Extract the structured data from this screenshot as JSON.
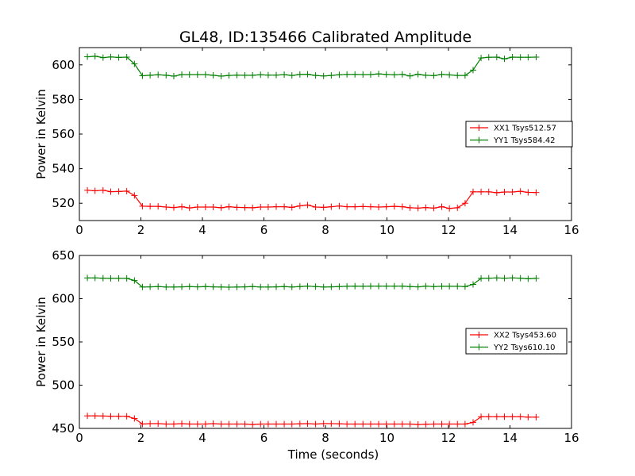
{
  "figure_title": "GL48, ID:135466 Calibrated Amplitude",
  "colors": {
    "xx": "#ff0000",
    "yy": "#008000",
    "axes": "#000000"
  },
  "chart_data": [
    {
      "type": "line",
      "title": "GL48, ID:135466 Calibrated Amplitude",
      "xlabel": "",
      "ylabel": "Power in Kelvin",
      "xlim": [
        0,
        16
      ],
      "ylim": [
        510,
        610
      ],
      "xticks": [
        0,
        2,
        4,
        6,
        8,
        10,
        12,
        14,
        16
      ],
      "yticks": [
        520,
        540,
        560,
        580,
        600
      ],
      "legend_placement": "center-right",
      "x": [
        0.26,
        0.51,
        0.77,
        1.02,
        1.28,
        1.54,
        1.79,
        2.05,
        2.3,
        2.56,
        2.82,
        3.07,
        3.33,
        3.58,
        3.84,
        4.1,
        4.35,
        4.61,
        4.86,
        5.12,
        5.38,
        5.63,
        5.89,
        6.14,
        6.4,
        6.66,
        6.91,
        7.17,
        7.42,
        7.68,
        7.94,
        8.19,
        8.45,
        8.7,
        8.96,
        9.22,
        9.47,
        9.73,
        9.98,
        10.24,
        10.5,
        10.75,
        11.01,
        11.26,
        11.52,
        11.78,
        12.03,
        12.29,
        12.54,
        12.8,
        13.06,
        13.31,
        13.57,
        13.82,
        14.08,
        14.34,
        14.59,
        14.85
      ],
      "series": [
        {
          "name": "XX1 Tsys512.57",
          "color": "#ff0000",
          "values": [
            527.5,
            527.2,
            527.5,
            526.7,
            526.8,
            527.0,
            524.5,
            518.3,
            518.2,
            518.2,
            517.8,
            517.5,
            518.0,
            517.3,
            517.8,
            517.8,
            517.8,
            517.4,
            518.0,
            517.6,
            517.5,
            517.4,
            517.8,
            517.8,
            518.0,
            518.0,
            517.6,
            518.5,
            519.0,
            517.8,
            517.6,
            518.0,
            518.4,
            518.0,
            518.0,
            518.1,
            518.0,
            517.8,
            518.0,
            518.2,
            518.0,
            517.4,
            517.2,
            517.5,
            517.2,
            518.0,
            517.0,
            517.4,
            520.0,
            526.6,
            526.6,
            526.6,
            526.1,
            526.5,
            526.5,
            526.9,
            526.3,
            526.2
          ]
        },
        {
          "name": "YY1 Tsys584.42",
          "color": "#008000",
          "values": [
            604.7,
            605.0,
            604.2,
            604.6,
            604.3,
            604.5,
            600.6,
            593.7,
            594.0,
            594.3,
            594.0,
            593.5,
            594.4,
            594.4,
            594.4,
            594.4,
            594.0,
            593.5,
            593.9,
            594.1,
            594.0,
            594.0,
            594.3,
            594.1,
            594.1,
            594.4,
            593.9,
            594.5,
            594.6,
            593.9,
            593.6,
            593.9,
            594.3,
            594.5,
            594.5,
            594.4,
            594.4,
            594.8,
            594.5,
            594.3,
            594.5,
            593.6,
            594.6,
            594.0,
            593.8,
            594.5,
            594.2,
            593.9,
            593.9,
            597.0,
            604.0,
            604.4,
            604.5,
            603.5,
            604.5,
            604.4,
            604.4,
            604.5
          ]
        }
      ]
    },
    {
      "type": "line",
      "title": "",
      "xlabel": "Time (seconds)",
      "ylabel": "Power in Kelvin",
      "xlim": [
        0,
        16
      ],
      "ylim": [
        450,
        650
      ],
      "xticks": [
        0,
        2,
        4,
        6,
        8,
        10,
        12,
        14,
        16
      ],
      "yticks": [
        450,
        500,
        550,
        600,
        650
      ],
      "legend_placement": "center-right",
      "x": [
        0.26,
        0.51,
        0.77,
        1.02,
        1.28,
        1.54,
        1.79,
        2.05,
        2.3,
        2.56,
        2.82,
        3.07,
        3.33,
        3.58,
        3.84,
        4.1,
        4.35,
        4.61,
        4.86,
        5.12,
        5.38,
        5.63,
        5.89,
        6.14,
        6.4,
        6.66,
        6.91,
        7.17,
        7.42,
        7.68,
        7.94,
        8.19,
        8.45,
        8.7,
        8.96,
        9.22,
        9.47,
        9.73,
        9.98,
        10.24,
        10.5,
        10.75,
        11.01,
        11.26,
        11.52,
        11.78,
        12.03,
        12.29,
        12.54,
        12.8,
        13.06,
        13.31,
        13.57,
        13.82,
        14.08,
        14.34,
        14.59,
        14.85
      ],
      "series": [
        {
          "name": "XX2 Tsys453.60",
          "color": "#ff0000",
          "values": [
            464.5,
            464.5,
            464.3,
            464.0,
            464.0,
            464.0,
            461.5,
            455.0,
            455.5,
            455.5,
            455.0,
            455.0,
            455.5,
            455.0,
            455.0,
            455.0,
            455.5,
            455.0,
            455.0,
            455.0,
            455.0,
            454.5,
            455.0,
            455.0,
            455.0,
            455.0,
            455.0,
            455.3,
            455.5,
            455.0,
            455.5,
            455.5,
            455.3,
            455.0,
            455.0,
            455.0,
            455.0,
            455.0,
            455.0,
            455.0,
            455.0,
            455.0,
            454.5,
            454.8,
            455.0,
            455.0,
            455.0,
            455.0,
            455.0,
            457.0,
            463.5,
            463.5,
            463.5,
            463.5,
            463.5,
            463.5,
            463.0,
            463.0
          ]
        },
        {
          "name": "YY2 Tsys610.10",
          "color": "#008000",
          "values": [
            624.0,
            624.0,
            623.7,
            623.5,
            623.5,
            623.5,
            621.0,
            613.5,
            613.7,
            614.0,
            613.5,
            613.5,
            613.7,
            614.0,
            613.7,
            614.0,
            613.7,
            613.5,
            613.3,
            613.5,
            613.7,
            614.0,
            613.5,
            613.5,
            613.7,
            614.0,
            613.5,
            614.0,
            614.5,
            614.0,
            613.5,
            613.7,
            614.0,
            614.3,
            614.5,
            614.3,
            614.5,
            614.5,
            614.5,
            614.5,
            614.5,
            614.0,
            613.7,
            614.5,
            614.0,
            614.3,
            614.3,
            614.3,
            614.0,
            616.5,
            623.5,
            623.7,
            624.0,
            623.7,
            624.0,
            623.7,
            623.0,
            623.5
          ]
        }
      ]
    }
  ]
}
